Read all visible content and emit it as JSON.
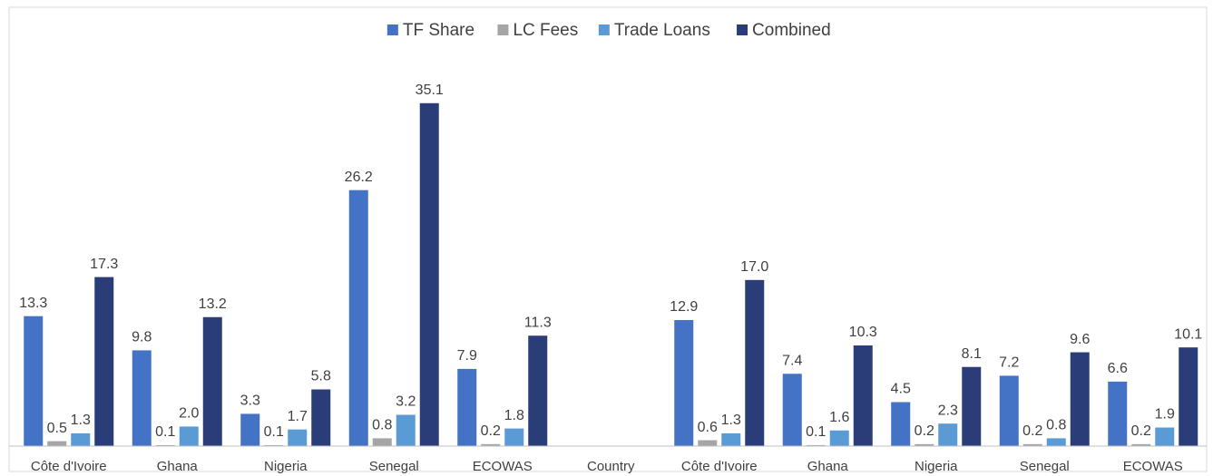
{
  "chart_data": {
    "type": "bar",
    "categories": [
      "Côte d'Ivoire",
      "Ghana",
      "Nigeria",
      "Senegal",
      "ECOWAS",
      "Country",
      "Côte d'Ivoire",
      "Ghana",
      "Nigeria",
      "Senegal",
      "ECOWAS"
    ],
    "series": [
      {
        "name": "TF Share",
        "color": "#4472c4",
        "values": [
          13.3,
          9.8,
          3.3,
          26.2,
          7.9,
          null,
          12.9,
          7.4,
          4.5,
          7.2,
          6.6
        ],
        "value_labels": [
          "13.3",
          "9.8",
          "3.3",
          "26.2",
          "7.9",
          null,
          "12.9",
          "7.4",
          "4.5",
          "7.2",
          "6.6"
        ]
      },
      {
        "name": "LC Fees",
        "color": "#a5a5a5",
        "values": [
          0.5,
          0.1,
          0.1,
          0.8,
          0.2,
          null,
          0.6,
          0.1,
          0.2,
          0.2,
          0.2
        ],
        "value_labels": [
          "0.5",
          "0.1",
          "0.1",
          "0.8",
          "0.2",
          null,
          "0.6",
          "0.1",
          "0.2",
          "0.2",
          "0.2"
        ]
      },
      {
        "name": "Trade Loans",
        "color": "#5b9bd5",
        "values": [
          1.3,
          2.0,
          1.7,
          3.2,
          1.8,
          null,
          1.3,
          1.6,
          2.3,
          0.8,
          1.9
        ],
        "value_labels": [
          "1.3",
          "2.0",
          "1.7",
          "3.2",
          "1.8",
          null,
          "1.3",
          "1.6",
          "2.3",
          "0.8",
          "1.9"
        ]
      },
      {
        "name": "Combined",
        "color": "#2a3d78",
        "values": [
          17.3,
          13.2,
          5.8,
          35.1,
          11.3,
          null,
          17.0,
          10.3,
          8.1,
          9.6,
          10.1
        ],
        "value_labels": [
          "17.3",
          "13.2",
          "5.8",
          "35.1",
          "11.3",
          null,
          "17.0",
          "10.3",
          "8.1",
          "9.6",
          "10.1"
        ]
      }
    ],
    "ylim": [
      0,
      40
    ],
    "legend": "top"
  }
}
